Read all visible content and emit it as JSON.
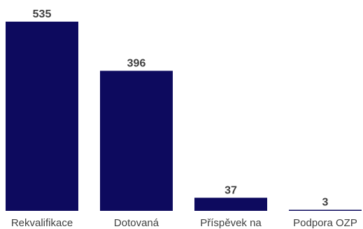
{
  "chart_data": {
    "type": "bar",
    "categories": [
      "Rekvalifikace",
      "Dotovaná",
      "Příspěvek na",
      "Podpora OZP"
    ],
    "values": [
      535,
      396,
      37,
      3
    ],
    "title": "",
    "xlabel": "",
    "ylabel": "",
    "ylim": [
      0,
      535
    ],
    "grid": false,
    "legend": "none",
    "colors": {
      "bar": "#0d0a5e",
      "value_label": "#404040",
      "category_label": "#404040",
      "background": "#ffffff"
    }
  }
}
